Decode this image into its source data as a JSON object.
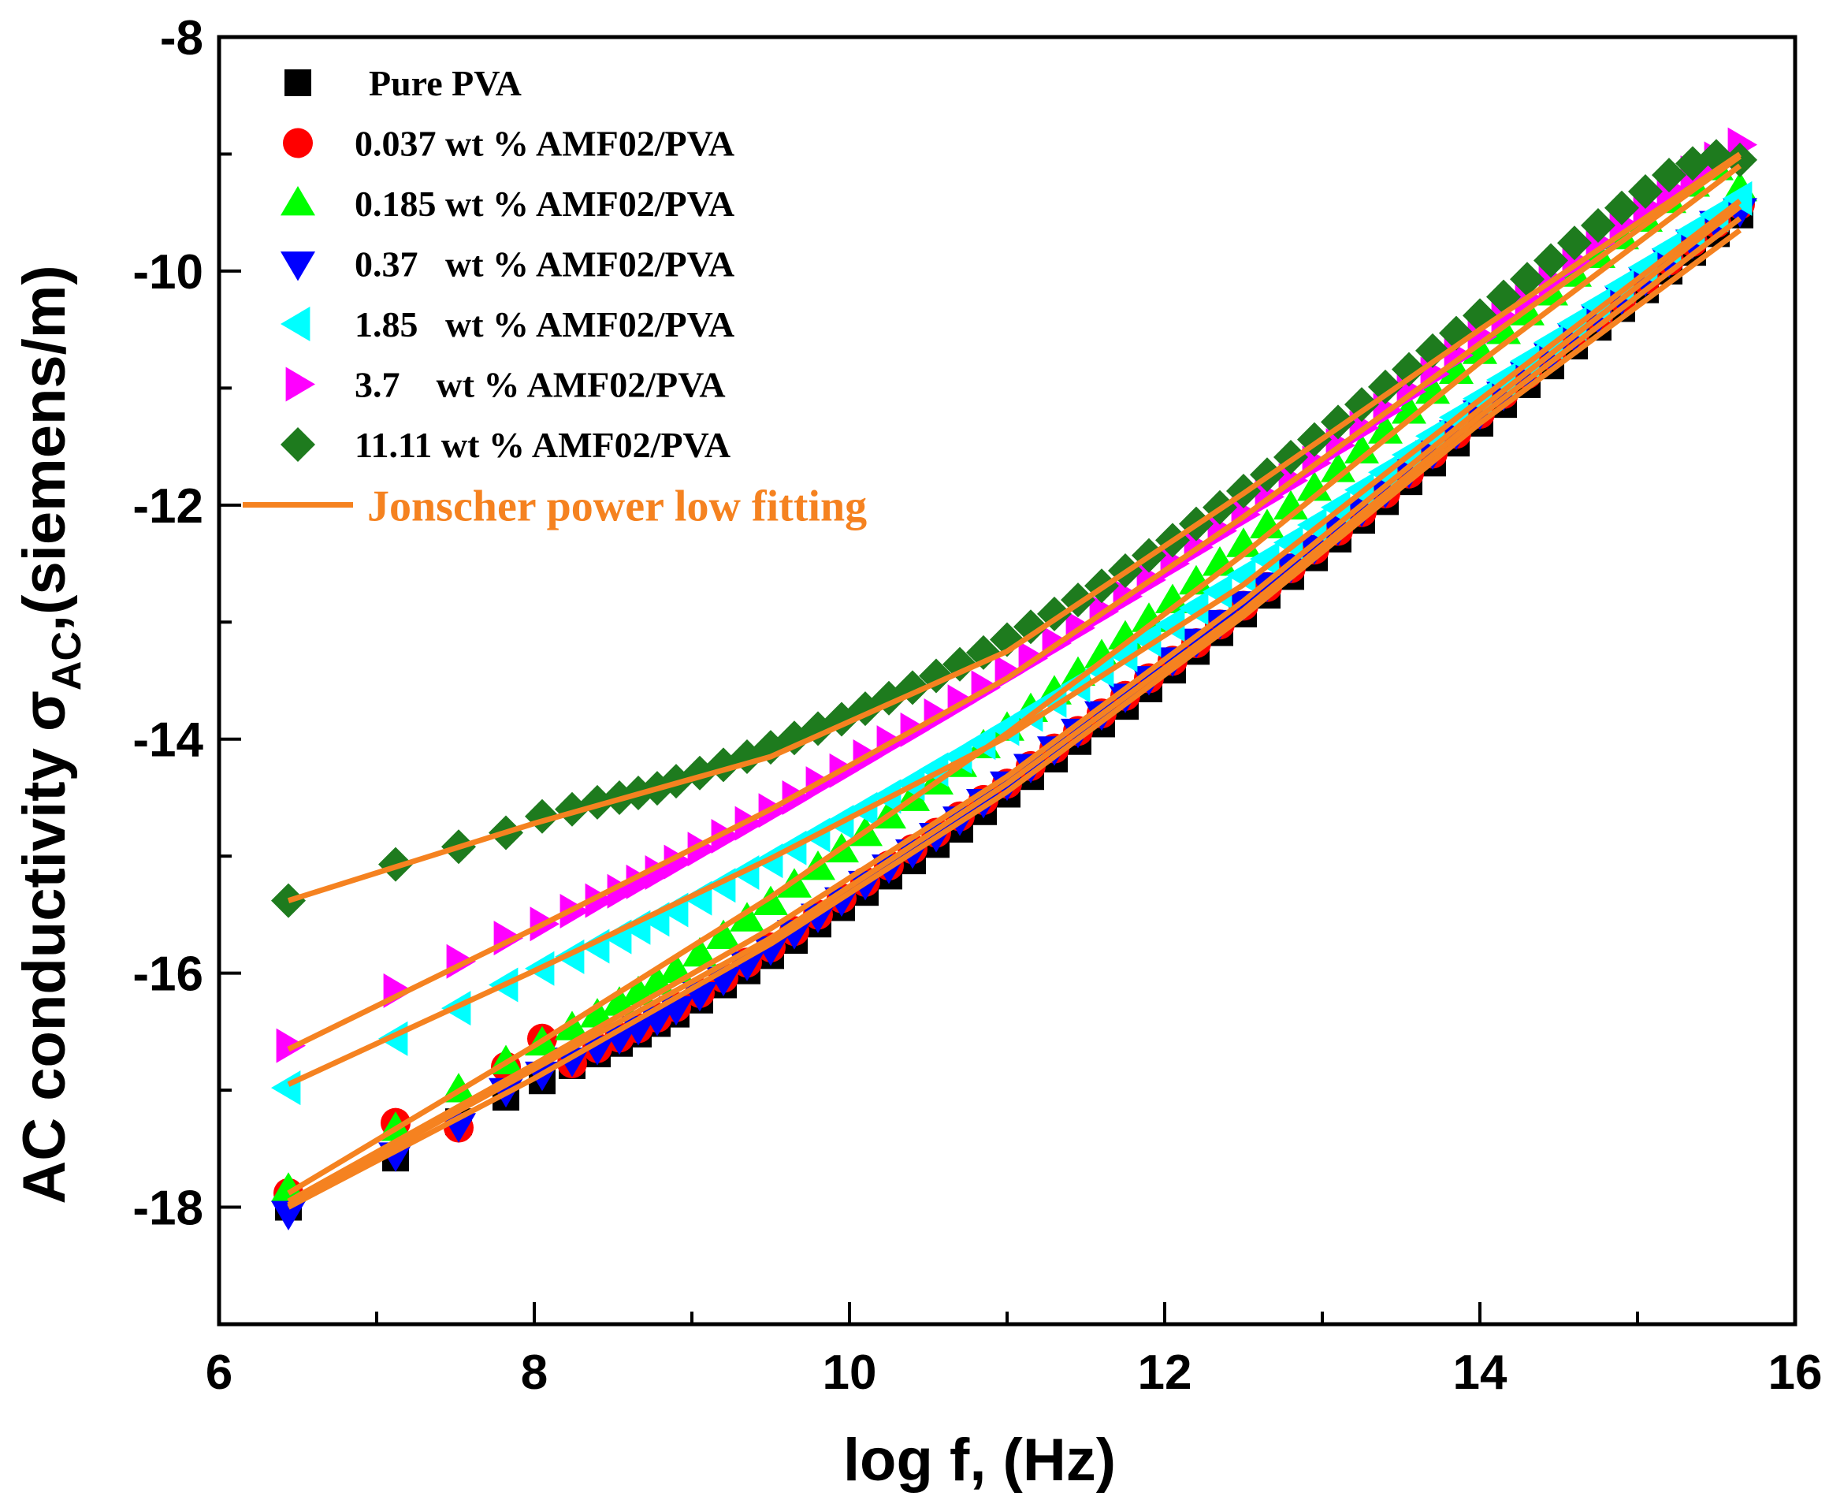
{
  "chart_data": {
    "type": "scatter",
    "xlabel": "log f, (Hz)",
    "ylabel_main": "AC conductivity σ",
    "ylabel_sub": "AC",
    "ylabel_unit": ",(siemens/m)",
    "xlim": [
      6,
      16
    ],
    "ylim": [
      -19,
      -8
    ],
    "xticks": [
      "6",
      "8",
      "10",
      "12",
      "14",
      "16"
    ],
    "yticks": [
      "-8",
      "-10",
      "-12",
      "-14",
      "-16",
      "-18"
    ],
    "fit_label": "Jonscher power low fitting",
    "fit_color": "#f58220",
    "x": [
      6.44,
      7.12,
      7.52,
      7.82,
      8.05,
      8.24,
      8.4,
      8.54,
      8.66,
      8.78,
      8.9,
      9.05,
      9.2,
      9.35,
      9.5,
      9.65,
      9.8,
      9.95,
      10.1,
      10.25,
      10.4,
      10.55,
      10.7,
      10.85,
      11.0,
      11.15,
      11.3,
      11.45,
      11.6,
      11.75,
      11.9,
      12.05,
      12.2,
      12.35,
      12.5,
      12.65,
      12.8,
      12.95,
      13.1,
      13.25,
      13.4,
      13.55,
      13.7,
      13.85,
      14.0,
      14.15,
      14.3,
      14.45,
      14.6,
      14.75,
      14.9,
      15.05,
      15.2,
      15.35,
      15.5,
      15.65
    ],
    "series": [
      {
        "name": "Pure PVA",
        "marker": "square",
        "color": "#000000",
        "values": [
          -18.0,
          -17.58,
          -17.27,
          -17.06,
          -16.92,
          -16.79,
          -16.69,
          -16.6,
          -16.52,
          -16.43,
          -16.35,
          -16.23,
          -16.1,
          -15.98,
          -15.85,
          -15.72,
          -15.58,
          -15.44,
          -15.31,
          -15.17,
          -15.04,
          -14.9,
          -14.77,
          -14.62,
          -14.47,
          -14.32,
          -14.17,
          -14.02,
          -13.87,
          -13.72,
          -13.57,
          -13.41,
          -13.25,
          -13.09,
          -12.93,
          -12.77,
          -12.61,
          -12.45,
          -12.29,
          -12.13,
          -11.97,
          -11.8,
          -11.64,
          -11.47,
          -11.3,
          -11.14,
          -10.97,
          -10.81,
          -10.64,
          -10.48,
          -10.32,
          -10.16,
          -10.0,
          -9.84,
          -9.68,
          -9.52
        ]
      },
      {
        "name": "0.037 wt % AMF02/PVA",
        "marker": "circle",
        "color": "#ff0000",
        "values": [
          -17.88,
          -17.28,
          -17.32,
          -16.8,
          -16.56,
          -16.77,
          -16.64,
          -16.55,
          -16.47,
          -16.38,
          -16.29,
          -16.17,
          -16.04,
          -15.91,
          -15.78,
          -15.64,
          -15.5,
          -15.36,
          -15.22,
          -15.08,
          -14.94,
          -14.8,
          -14.66,
          -14.52,
          -14.38,
          -14.23,
          -14.08,
          -13.93,
          -13.78,
          -13.63,
          -13.48,
          -13.33,
          -13.18,
          -13.02,
          -12.86,
          -12.7,
          -12.54,
          -12.38,
          -12.22,
          -12.06,
          -11.9,
          -11.73,
          -11.56,
          -11.39,
          -11.22,
          -11.05,
          -10.88,
          -10.72,
          -10.55,
          -10.39,
          -10.23,
          -10.07,
          -9.91,
          -9.75,
          -9.59,
          -9.43
        ]
      },
      {
        "name": "0.185 wt % AMF02/PVA",
        "marker": "triangle-up",
        "color": "#00ff00",
        "values": [
          -17.85,
          -17.33,
          -17.0,
          -16.76,
          -16.6,
          -16.47,
          -16.36,
          -16.26,
          -16.17,
          -16.08,
          -15.98,
          -15.84,
          -15.69,
          -15.54,
          -15.4,
          -15.25,
          -15.1,
          -14.95,
          -14.81,
          -14.66,
          -14.51,
          -14.37,
          -14.22,
          -14.06,
          -13.91,
          -13.75,
          -13.6,
          -13.44,
          -13.29,
          -13.13,
          -12.98,
          -12.82,
          -12.66,
          -12.5,
          -12.34,
          -12.18,
          -12.02,
          -11.86,
          -11.7,
          -11.54,
          -11.37,
          -11.2,
          -11.03,
          -10.86,
          -10.69,
          -10.52,
          -10.36,
          -10.19,
          -10.03,
          -9.87,
          -9.71,
          -9.56,
          -9.4,
          -9.26,
          -9.12,
          -9.3
        ]
      },
      {
        "name": "0.37   wt % AMF02/PVA",
        "marker": "triangle-down",
        "color": "#0000ff",
        "values": [
          -18.05,
          -17.55,
          -17.3,
          -17.0,
          -16.86,
          -16.74,
          -16.64,
          -16.55,
          -16.47,
          -16.39,
          -16.3,
          -16.18,
          -16.05,
          -15.92,
          -15.79,
          -15.65,
          -15.51,
          -15.37,
          -15.23,
          -15.09,
          -14.96,
          -14.82,
          -14.68,
          -14.53,
          -14.38,
          -14.23,
          -14.08,
          -13.93,
          -13.78,
          -13.63,
          -13.48,
          -13.32,
          -13.16,
          -13.0,
          -12.84,
          -12.68,
          -12.52,
          -12.36,
          -12.2,
          -12.04,
          -11.88,
          -11.71,
          -11.55,
          -11.38,
          -11.21,
          -11.05,
          -10.88,
          -10.72,
          -10.55,
          -10.39,
          -10.23,
          -10.07,
          -9.91,
          -9.75,
          -9.59,
          -9.48
        ]
      },
      {
        "name": "1.85   wt % AMF02/PVA",
        "marker": "triangle-left",
        "color": "#00ffff",
        "values": [
          -16.98,
          -16.56,
          -16.3,
          -16.1,
          -15.96,
          -15.86,
          -15.77,
          -15.69,
          -15.61,
          -15.54,
          -15.46,
          -15.36,
          -15.25,
          -15.14,
          -15.04,
          -14.93,
          -14.82,
          -14.71,
          -14.6,
          -14.49,
          -14.38,
          -14.26,
          -14.15,
          -14.03,
          -13.91,
          -13.79,
          -13.67,
          -13.54,
          -13.41,
          -13.28,
          -13.15,
          -13.02,
          -12.88,
          -12.74,
          -12.6,
          -12.46,
          -12.32,
          -12.17,
          -12.02,
          -11.87,
          -11.72,
          -11.57,
          -11.41,
          -11.25,
          -11.09,
          -10.93,
          -10.77,
          -10.61,
          -10.45,
          -10.29,
          -10.13,
          -9.97,
          -9.81,
          -9.66,
          -9.52,
          -9.38
        ]
      },
      {
        "name": "3.7    wt % AMF02/PVA",
        "marker": "triangle-right",
        "color": "#ff00ff",
        "values": [
          -16.62,
          -16.15,
          -15.9,
          -15.7,
          -15.58,
          -15.47,
          -15.38,
          -15.3,
          -15.22,
          -15.14,
          -15.05,
          -14.94,
          -14.83,
          -14.72,
          -14.61,
          -14.5,
          -14.38,
          -14.27,
          -14.15,
          -14.03,
          -13.92,
          -13.8,
          -13.68,
          -13.56,
          -13.43,
          -13.31,
          -13.18,
          -13.05,
          -12.91,
          -12.78,
          -12.64,
          -12.5,
          -12.36,
          -12.22,
          -12.08,
          -11.93,
          -11.79,
          -11.64,
          -11.49,
          -11.34,
          -11.19,
          -11.03,
          -10.88,
          -10.72,
          -10.56,
          -10.4,
          -10.24,
          -10.08,
          -9.92,
          -9.76,
          -9.6,
          -9.45,
          -9.3,
          -9.16,
          -9.04,
          -8.92
        ]
      },
      {
        "name": "11.11 wt % AMF02/PVA",
        "marker": "diamond",
        "color": "#1e7b1e",
        "values": [
          -15.38,
          -15.07,
          -14.92,
          -14.8,
          -14.66,
          -14.6,
          -14.54,
          -14.5,
          -14.46,
          -14.42,
          -14.36,
          -14.29,
          -14.22,
          -14.15,
          -14.07,
          -13.99,
          -13.91,
          -13.83,
          -13.74,
          -13.65,
          -13.56,
          -13.46,
          -13.36,
          -13.26,
          -13.15,
          -13.04,
          -12.93,
          -12.81,
          -12.69,
          -12.56,
          -12.43,
          -12.3,
          -12.16,
          -12.02,
          -11.88,
          -11.74,
          -11.59,
          -11.44,
          -11.29,
          -11.14,
          -10.99,
          -10.84,
          -10.68,
          -10.53,
          -10.38,
          -10.22,
          -10.07,
          -9.91,
          -9.76,
          -9.61,
          -9.46,
          -9.32,
          -9.18,
          -9.08,
          -9.02,
          -9.05
        ]
      }
    ],
    "fits": [
      {
        "x": [
          6.44,
          8.0,
          9.5,
          11.0,
          12.5,
          14.0,
          15.65
        ],
        "y": [
          -18.0,
          -16.9,
          -15.75,
          -14.45,
          -12.95,
          -11.3,
          -9.65
        ]
      },
      {
        "x": [
          6.44,
          8.0,
          9.5,
          11.0,
          12.5,
          14.0,
          15.65
        ],
        "y": [
          -17.95,
          -16.78,
          -15.62,
          -14.32,
          -12.82,
          -11.18,
          -9.45
        ]
      },
      {
        "x": [
          6.44,
          8.0,
          9.5,
          11.0,
          12.5,
          14.0,
          15.65
        ],
        "y": [
          -17.88,
          -16.62,
          -15.35,
          -13.95,
          -12.42,
          -10.78,
          -9.1
        ]
      },
      {
        "x": [
          6.44,
          8.0,
          9.5,
          11.0,
          12.5,
          14.0,
          15.65
        ],
        "y": [
          -17.98,
          -16.82,
          -15.7,
          -14.38,
          -12.9,
          -11.24,
          -9.55
        ]
      },
      {
        "x": [
          6.44,
          8.0,
          9.5,
          11.0,
          12.5,
          14.0,
          15.65
        ],
        "y": [
          -16.95,
          -15.98,
          -15.02,
          -13.98,
          -12.68,
          -11.1,
          -9.4
        ]
      },
      {
        "x": [
          6.44,
          8.0,
          9.5,
          11.0,
          12.5,
          14.0,
          15.65
        ],
        "y": [
          -16.65,
          -15.62,
          -14.6,
          -13.48,
          -12.1,
          -10.62,
          -9.02
        ]
      },
      {
        "x": [
          6.44,
          8.0,
          9.5,
          11.0,
          12.5,
          14.0,
          15.65
        ],
        "y": [
          -15.38,
          -14.72,
          -14.15,
          -13.25,
          -11.9,
          -10.5,
          -9.0
        ]
      }
    ]
  }
}
